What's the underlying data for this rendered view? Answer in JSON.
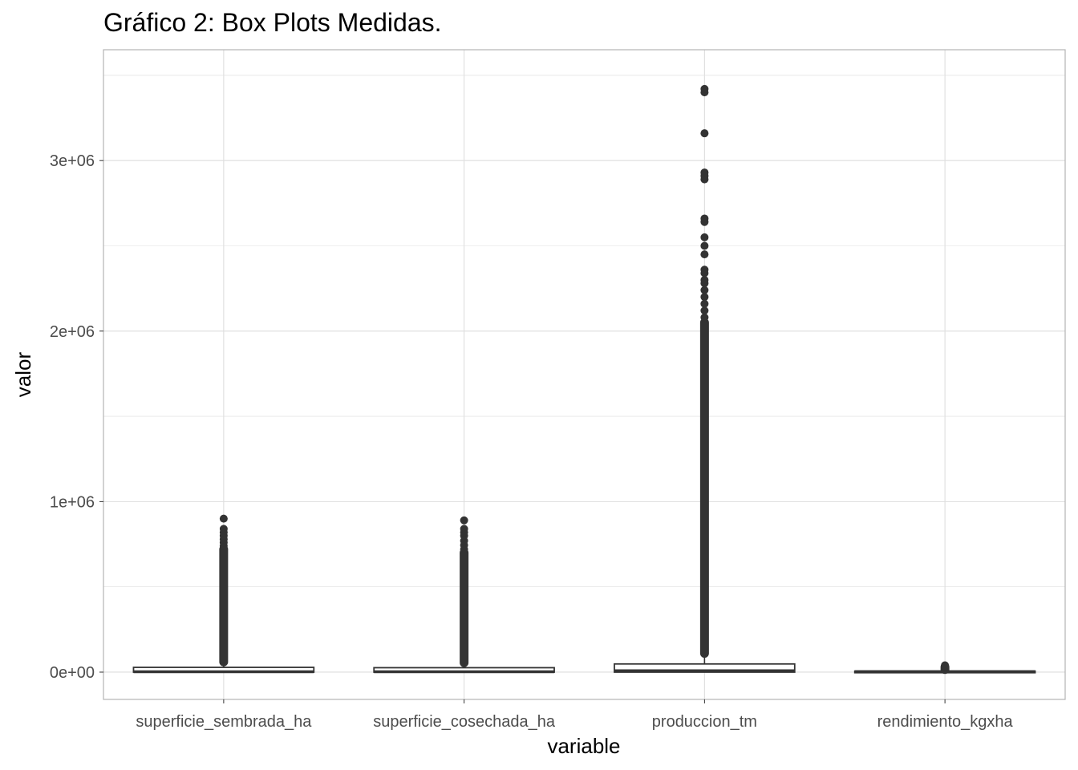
{
  "chart_data": {
    "type": "box",
    "title": "Gráfico 2: Box Plots Medidas.",
    "xlabel": "variable",
    "ylabel": "valor",
    "ylim": [
      -160000,
      3650000
    ],
    "y_ticks": [
      0,
      1000000,
      2000000,
      3000000
    ],
    "y_tick_labels": [
      "0e+00",
      "1e+06",
      "2e+06",
      "3e+06"
    ],
    "grid": true,
    "legend": "none",
    "colors": {
      "box_stroke": "#333333",
      "outlier": "#333333",
      "grid": "#dedede",
      "panel_border": "#b3b3b3"
    },
    "categories": [
      "superficie_sembrada_ha",
      "superficie_cosechada_ha",
      "produccion_tm",
      "rendimiento_kgxha"
    ],
    "series": [
      {
        "category": "superficie_sembrada_ha",
        "q1": 0,
        "median": 2000,
        "q3": 28000,
        "whisker_low": 0,
        "whisker_high": 60000,
        "outlier_range": [
          60000,
          720000
        ],
        "outliers": [
          740000,
          760000,
          780000,
          800000,
          820000,
          840000,
          900000
        ]
      },
      {
        "category": "superficie_cosechada_ha",
        "q1": 0,
        "median": 2000,
        "q3": 26000,
        "whisker_low": 0,
        "whisker_high": 55000,
        "outlier_range": [
          55000,
          700000
        ],
        "outliers": [
          720000,
          745000,
          770000,
          800000,
          820000,
          840000,
          890000
        ]
      },
      {
        "category": "produccion_tm",
        "q1": 0,
        "median": 8000,
        "q3": 48000,
        "whisker_low": 0,
        "whisker_high": 110000,
        "outlier_range": [
          110000,
          2050000
        ],
        "outliers": [
          2080000,
          2120000,
          2160000,
          2200000,
          2240000,
          2280000,
          2300000,
          2340000,
          2360000,
          2450000,
          2500000,
          2550000,
          2640000,
          2660000,
          2890000,
          2910000,
          2930000,
          3160000,
          3400000,
          3420000
        ]
      },
      {
        "category": "rendimiento_kgxha",
        "q1": 0,
        "median": 3000,
        "q3": 6000,
        "whisker_low": 0,
        "whisker_high": 15000,
        "outlier_range": [
          15000,
          30000
        ],
        "outliers": [
          35000,
          40000
        ]
      }
    ]
  }
}
